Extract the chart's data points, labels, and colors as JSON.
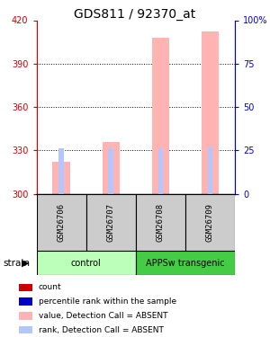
{
  "title": "GDS811 / 92370_at",
  "samples": [
    "GSM26706",
    "GSM26707",
    "GSM26708",
    "GSM26709"
  ],
  "ylim_left": [
    300,
    420
  ],
  "ylim_right": [
    0,
    100
  ],
  "yticks_left": [
    300,
    330,
    360,
    390,
    420
  ],
  "yticks_right": [
    0,
    25,
    50,
    75,
    100
  ],
  "value_bars": [
    322,
    336,
    408,
    412
  ],
  "rank_bars": [
    26,
    26,
    26,
    27
  ],
  "bar_base": 300,
  "value_color": "#ffb3b3",
  "rank_color": "#b3c6ff",
  "count_color": "#cc0000",
  "percentile_color": "#0000cc",
  "control_color_light": "#aaffaa",
  "transgenic_color_dark": "#44cc44",
  "sample_box_color": "#cccccc",
  "title_fontsize": 10,
  "tick_fontsize": 7,
  "left_axis_color": "#cc0000",
  "right_axis_color": "#0000cc",
  "bar_width": 0.35,
  "rank_bar_width": 0.1,
  "groups_info": [
    {
      "label": "control",
      "start": 0,
      "end": 2,
      "color": "#bbffbb"
    },
    {
      "label": "APPSw transgenic",
      "start": 2,
      "end": 4,
      "color": "#44cc44"
    }
  ],
  "legend_items": [
    {
      "color": "#cc0000",
      "label": "count"
    },
    {
      "color": "#0000cc",
      "label": "percentile rank within the sample"
    },
    {
      "color": "#ffb3b3",
      "label": "value, Detection Call = ABSENT"
    },
    {
      "color": "#b3c6ff",
      "label": "rank, Detection Call = ABSENT"
    }
  ]
}
